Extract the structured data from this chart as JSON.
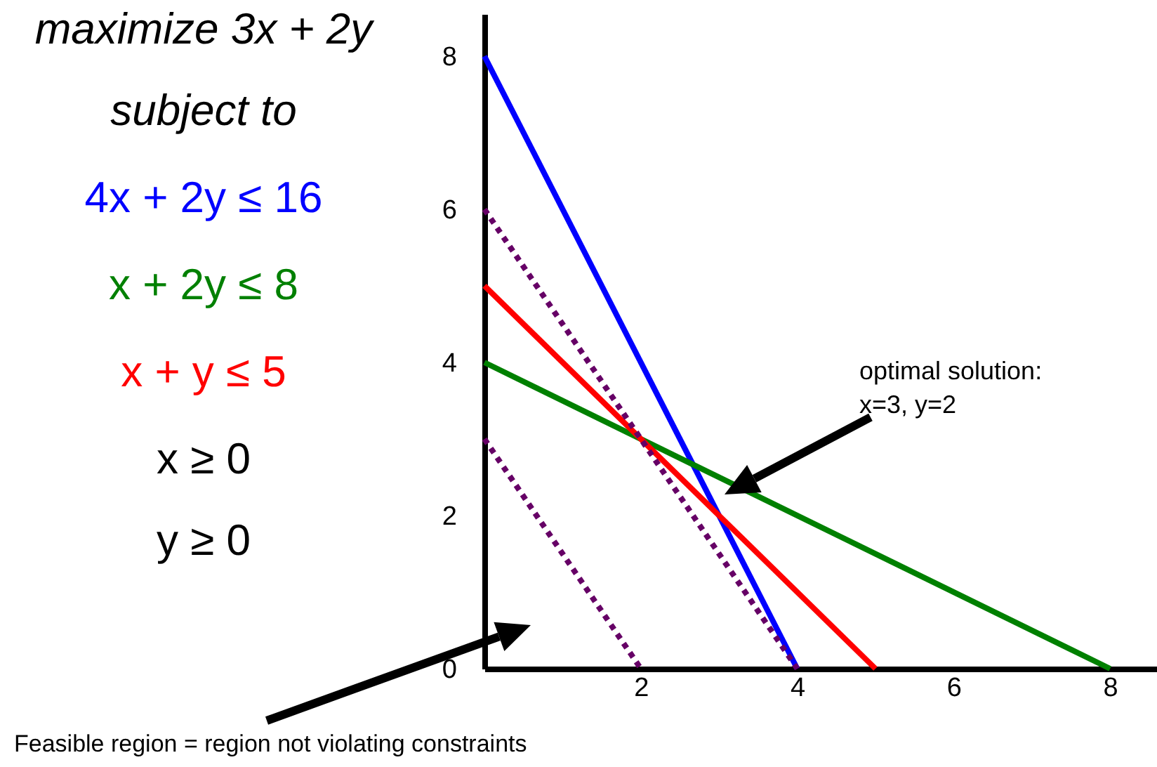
{
  "chart_data": {
    "type": "line",
    "title": "maximize 3x + 2y",
    "xlim": [
      0,
      8.6
    ],
    "ylim": [
      0,
      8.55
    ],
    "xticks": [
      2,
      4,
      6,
      8
    ],
    "yticks": [
      0,
      2,
      4,
      6,
      8
    ],
    "grid": false,
    "legend": "left",
    "marker": "none",
    "series": [
      {
        "name": "4x + 2y ≤ 16",
        "color": "#0000ff",
        "x": [
          0,
          4
        ],
        "values": [
          8,
          0
        ],
        "line_style": "solid"
      },
      {
        "name": "x + 2y ≤ 8",
        "color": "#008000",
        "x": [
          0,
          8
        ],
        "values": [
          4,
          0
        ],
        "line_style": "solid"
      },
      {
        "name": "x + y ≤ 5",
        "color": "#ff0000",
        "x": [
          0,
          5
        ],
        "values": [
          5,
          0
        ],
        "line_style": "solid"
      },
      {
        "color": "#660066",
        "x": [
          0,
          4
        ],
        "values": [
          6,
          0
        ],
        "line_style": "dotted"
      },
      {
        "color": "#660066",
        "x": [
          0,
          2
        ],
        "values": [
          3,
          0
        ],
        "line_style": "dotted"
      }
    ],
    "annotations": [
      "subject to",
      "x ≥ 0",
      "y ≥ 0",
      "optimal solution:\nx=3, y=2",
      "Feasible region = region not violating constraints"
    ]
  }
}
